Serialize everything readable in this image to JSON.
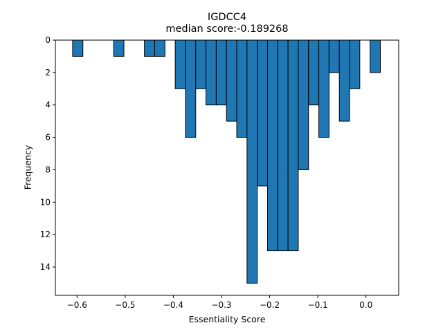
{
  "chart_data": {
    "type": "bar",
    "title": "IGDCC4",
    "subtitle": "median score:-0.189268",
    "xlabel": "Essentiality Score",
    "ylabel": "Frequency",
    "xlim": [
      -0.645,
      0.068
    ],
    "ylim": [
      0,
      15.75
    ],
    "y_inverted": true,
    "grid": false,
    "bar_color": "#1f77b4",
    "edge_color": "#000000",
    "bin_width": 0.0213,
    "bin_centers": [
      -0.5985,
      -0.5133,
      -0.4494,
      -0.4281,
      -0.3855,
      -0.3642,
      -0.3429,
      -0.3216,
      -0.3003,
      -0.279,
      -0.2577,
      -0.2364,
      -0.2151,
      -0.1938,
      -0.1725,
      -0.1512,
      -0.1299,
      -0.1086,
      -0.0873,
      -0.066,
      -0.0447,
      -0.0234,
      0.0192
    ],
    "values": [
      1,
      1,
      1,
      1,
      3,
      6,
      3,
      4,
      4,
      5,
      6,
      15,
      9,
      13,
      13,
      13,
      8,
      4,
      6,
      2,
      5,
      3,
      2
    ],
    "xticks": [
      -0.6,
      -0.5,
      -0.4,
      -0.3,
      -0.2,
      -0.1,
      0.0
    ],
    "xtick_labels": [
      "−0.6",
      "−0.5",
      "−0.4",
      "−0.3",
      "−0.2",
      "−0.1",
      "0.0"
    ],
    "yticks": [
      0,
      2,
      4,
      6,
      8,
      10,
      12,
      14
    ],
    "ytick_labels": [
      "0",
      "2",
      "4",
      "6",
      "8",
      "10",
      "12",
      "14"
    ]
  }
}
